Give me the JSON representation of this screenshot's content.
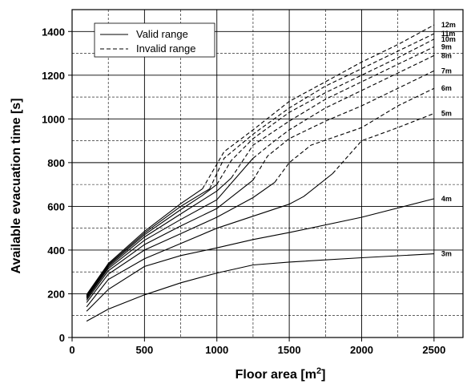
{
  "chart_data": {
    "type": "line",
    "title": "",
    "xlabel": "Floor area [m",
    "xlabel_sup": "2",
    "xlabel_tail": "]",
    "ylabel": "Available evacuation time   [s]",
    "xlim": [
      0,
      2700
    ],
    "ylim": [
      0,
      1500
    ],
    "xticks": [
      0,
      500,
      1000,
      1500,
      2000,
      2500
    ],
    "yticks": [
      0,
      200,
      400,
      600,
      800,
      1000,
      1200,
      1400
    ],
    "grid_x_minor": 250,
    "grid_y_minor": 100,
    "grid": true,
    "legend_position": "top-left",
    "legend": [
      {
        "label": "Valid range",
        "style": "solid"
      },
      {
        "label": "Invalid range",
        "style": "dashed"
      }
    ],
    "series": [
      {
        "name": "3m",
        "valid": [
          [
            100,
            75
          ],
          [
            250,
            130
          ],
          [
            500,
            195
          ],
          [
            750,
            250
          ],
          [
            1000,
            295
          ],
          [
            1250,
            332
          ],
          [
            1500,
            345
          ],
          [
            2000,
            365
          ],
          [
            2500,
            383
          ]
        ],
        "invalid": []
      },
      {
        "name": "4m",
        "valid": [
          [
            100,
            120
          ],
          [
            250,
            220
          ],
          [
            500,
            325
          ],
          [
            750,
            375
          ],
          [
            1000,
            410
          ],
          [
            1250,
            448
          ],
          [
            1500,
            480
          ],
          [
            2000,
            550
          ],
          [
            2500,
            635
          ]
        ],
        "invalid": []
      },
      {
        "name": "5m",
        "valid": [
          [
            100,
            140
          ],
          [
            250,
            265
          ],
          [
            500,
            360
          ],
          [
            750,
            430
          ],
          [
            1000,
            500
          ],
          [
            1250,
            555
          ],
          [
            1500,
            610
          ],
          [
            1600,
            645
          ],
          [
            1800,
            750
          ]
        ],
        "invalid": [
          [
            1800,
            750
          ],
          [
            1900,
            825
          ],
          [
            2000,
            900
          ],
          [
            2250,
            960
          ],
          [
            2500,
            1025
          ]
        ]
      },
      {
        "name": "6m",
        "valid": [
          [
            100,
            160
          ],
          [
            250,
            290
          ],
          [
            500,
            400
          ],
          [
            750,
            475
          ],
          [
            1000,
            550
          ],
          [
            1250,
            640
          ],
          [
            1400,
            710
          ]
        ],
        "invalid": [
          [
            1400,
            710
          ],
          [
            1500,
            800
          ],
          [
            1650,
            880
          ],
          [
            2000,
            960
          ],
          [
            2250,
            1060
          ],
          [
            2500,
            1140
          ]
        ]
      },
      {
        "name": "7m",
        "valid": [
          [
            100,
            170
          ],
          [
            250,
            305
          ],
          [
            500,
            425
          ],
          [
            750,
            510
          ],
          [
            1000,
            590
          ],
          [
            1250,
            720
          ]
        ],
        "invalid": [
          [
            1250,
            720
          ],
          [
            1350,
            830
          ],
          [
            1500,
            910
          ],
          [
            1750,
            990
          ],
          [
            2000,
            1060
          ],
          [
            2250,
            1140
          ],
          [
            2500,
            1220
          ]
        ]
      },
      {
        "name": "8m",
        "valid": [
          [
            100,
            178
          ],
          [
            250,
            315
          ],
          [
            500,
            445
          ],
          [
            750,
            540
          ],
          [
            1000,
            630
          ],
          [
            1250,
            820
          ]
        ],
        "invalid": [
          [
            1250,
            820
          ],
          [
            1400,
            900
          ],
          [
            1500,
            950
          ],
          [
            1750,
            1050
          ],
          [
            2000,
            1130
          ],
          [
            2250,
            1210
          ],
          [
            2500,
            1290
          ]
        ]
      },
      {
        "name": "9m",
        "valid": [
          [
            100,
            183
          ],
          [
            250,
            322
          ],
          [
            500,
            460
          ],
          [
            750,
            565
          ],
          [
            1000,
            670
          ],
          [
            1100,
            730
          ]
        ],
        "invalid": [
          [
            1100,
            730
          ],
          [
            1250,
            880
          ],
          [
            1500,
            990
          ],
          [
            1750,
            1090
          ],
          [
            2000,
            1170
          ],
          [
            2250,
            1250
          ],
          [
            2500,
            1330
          ]
        ]
      },
      {
        "name": "10m",
        "valid": [
          [
            100,
            188
          ],
          [
            250,
            328
          ],
          [
            500,
            470
          ],
          [
            750,
            585
          ],
          [
            900,
            650
          ],
          [
            1000,
            700
          ]
        ],
        "invalid": [
          [
            1000,
            700
          ],
          [
            1100,
            810
          ],
          [
            1250,
            910
          ],
          [
            1500,
            1030
          ],
          [
            1750,
            1120
          ],
          [
            2000,
            1200
          ],
          [
            2250,
            1280
          ],
          [
            2500,
            1365
          ]
        ]
      },
      {
        "name": "11m",
        "valid": [
          [
            100,
            192
          ],
          [
            250,
            333
          ],
          [
            500,
            478
          ],
          [
            750,
            600
          ],
          [
            950,
            680
          ]
        ],
        "invalid": [
          [
            950,
            680
          ],
          [
            1050,
            820
          ],
          [
            1250,
            930
          ],
          [
            1500,
            1050
          ],
          [
            1750,
            1150
          ],
          [
            2000,
            1230
          ],
          [
            2250,
            1310
          ],
          [
            2500,
            1390
          ]
        ]
      },
      {
        "name": "12m",
        "valid": [
          [
            100,
            196
          ],
          [
            250,
            338
          ],
          [
            500,
            486
          ],
          [
            750,
            612
          ],
          [
            900,
            680
          ]
        ],
        "invalid": [
          [
            900,
            680
          ],
          [
            1050,
            850
          ],
          [
            1250,
            950
          ],
          [
            1500,
            1080
          ],
          [
            1750,
            1170
          ],
          [
            2000,
            1260
          ],
          [
            2250,
            1340
          ],
          [
            2500,
            1430
          ]
        ]
      }
    ]
  }
}
